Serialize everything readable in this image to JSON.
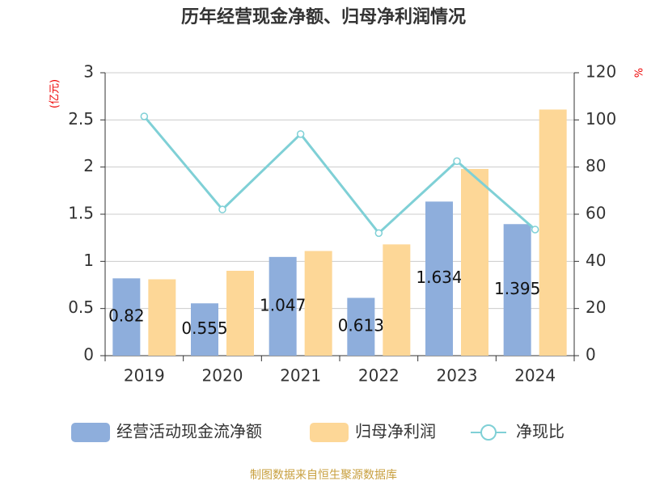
{
  "chart_data": {
    "type": "bar",
    "title": "历年经营现金净额、归母净利润情况",
    "y_label": "(亿元)",
    "y2_label": "%",
    "source": "制图数据来自恒生聚源数据库",
    "categories": [
      "2019",
      "2020",
      "2021",
      "2022",
      "2023",
      "2024"
    ],
    "series": [
      {
        "name": "经营活动现金流净额",
        "color": "#8eaedc",
        "values": [
          0.82,
          0.555,
          1.047,
          0.613,
          1.634,
          1.395
        ],
        "labels": true
      },
      {
        "name": "归母净利润",
        "color": "#fdd797",
        "values": [
          0.81,
          0.9,
          1.11,
          1.18,
          1.98,
          2.61
        ]
      },
      {
        "name": "净现比",
        "color": "#7fd0d6",
        "type": "line",
        "axis": "y2",
        "values": [
          101.5,
          62,
          94,
          52,
          82.5,
          53.5
        ]
      }
    ],
    "ylim": [
      0,
      3
    ],
    "yticks": [
      0,
      0.5,
      1,
      1.5,
      2,
      2.5,
      3
    ],
    "y2lim": [
      0,
      120
    ],
    "y2ticks": [
      0,
      20,
      40,
      60,
      80,
      100,
      120
    ],
    "grid": true,
    "legend": "bottom"
  }
}
